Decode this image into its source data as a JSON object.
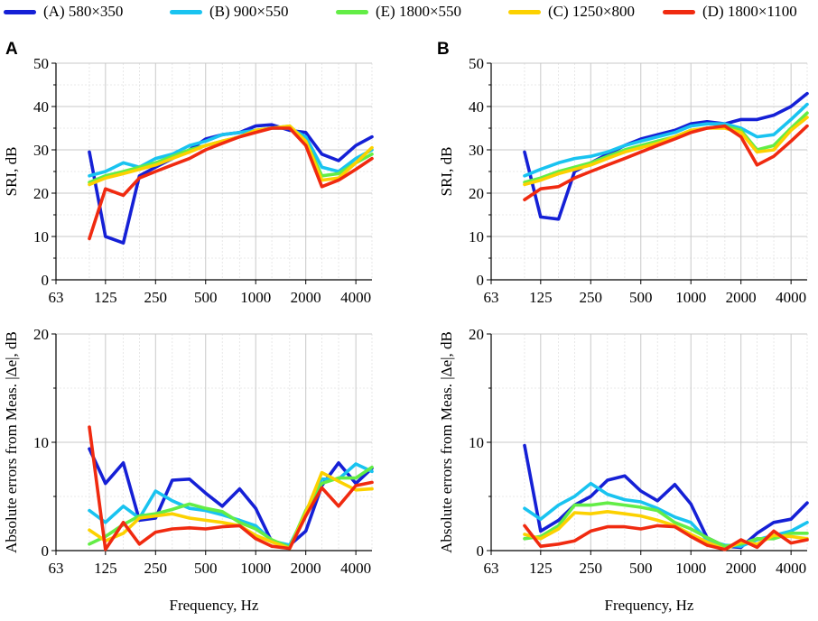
{
  "legend": [
    {
      "label": "(A) 580×350",
      "color": "#1520d6"
    },
    {
      "label": "(B) 900×550",
      "color": "#19c3f0"
    },
    {
      "label": "(E) 1800×550",
      "color": "#63ed46"
    },
    {
      "label": "(C) 1250×800",
      "color": "#fcd100"
    },
    {
      "label": "(D) 1800×1100",
      "color": "#f02a10"
    }
  ],
  "panel_labels": [
    "A",
    "B"
  ],
  "chart_data": [
    {
      "id": "A-top",
      "type": "line",
      "panel": "A",
      "ylabel": "SRI, dB",
      "xlabel": "",
      "ylim": [
        0,
        50
      ],
      "yticks": [
        0,
        10,
        20,
        30,
        40,
        50
      ],
      "xscale": "log",
      "xlim": [
        63,
        5000
      ],
      "xticks": [
        63,
        125,
        250,
        500,
        1000,
        2000,
        4000
      ],
      "grid": true,
      "x": [
        100,
        125,
        160,
        200,
        250,
        315,
        400,
        500,
        630,
        800,
        1000,
        1250,
        1600,
        2000,
        2500,
        3150,
        4000,
        5000
      ],
      "series": [
        {
          "name": "(A) 580×350",
          "values": [
            29.5,
            10,
            8.5,
            24,
            26,
            28,
            30,
            32.5,
            33.5,
            34,
            35.5,
            35.8,
            34.5,
            34,
            29,
            27.5,
            31,
            33
          ]
        },
        {
          "name": "(B) 900×550",
          "values": [
            24,
            25,
            27,
            26,
            28,
            29,
            31,
            32,
            33.5,
            34,
            34.5,
            35,
            35,
            33,
            26,
            25,
            28,
            30
          ]
        },
        {
          "name": "(E) 1800×550",
          "values": [
            22.5,
            24,
            25,
            26,
            27,
            28.5,
            30,
            31,
            32,
            33,
            34.5,
            35,
            35.5,
            32,
            24,
            24.5,
            27,
            29
          ]
        },
        {
          "name": "(C) 1250×800",
          "values": [
            22,
            23.5,
            24.5,
            25.5,
            26.5,
            28,
            29.5,
            31,
            32,
            33,
            34.5,
            35,
            35.5,
            32,
            23,
            23.5,
            27,
            30.5
          ]
        },
        {
          "name": "(D) 1800×1100",
          "values": [
            9.5,
            21,
            19.5,
            23.5,
            25,
            26.5,
            28,
            30,
            31.5,
            33,
            34,
            35,
            35,
            31,
            21.5,
            23,
            25.5,
            28
          ]
        }
      ]
    },
    {
      "id": "A-bottom",
      "type": "line",
      "panel": "A",
      "ylabel": "Absolute errors from Meas. |Δe|, dB",
      "xlabel": "Frequency, Hz",
      "ylim": [
        0,
        20
      ],
      "yticks": [
        0,
        10,
        20
      ],
      "xscale": "log",
      "xlim": [
        63,
        5000
      ],
      "xticks": [
        63,
        125,
        250,
        500,
        1000,
        2000,
        4000
      ],
      "grid": true,
      "x": [
        100,
        125,
        160,
        200,
        250,
        315,
        400,
        500,
        630,
        800,
        1000,
        1250,
        1600,
        2000,
        2500,
        3150,
        4000,
        5000
      ],
      "series": [
        {
          "name": "(A) 580×350",
          "values": [
            9.4,
            6.2,
            8.1,
            2.8,
            3.0,
            6.5,
            6.6,
            5.3,
            4.1,
            5.7,
            3.9,
            0.8,
            0.5,
            1.8,
            6.0,
            8.1,
            6.2,
            7.6
          ]
        },
        {
          "name": "(B) 900×550",
          "values": [
            3.7,
            2.6,
            4.1,
            3.0,
            5.5,
            4.6,
            3.9,
            3.7,
            3.3,
            2.8,
            2.3,
            0.9,
            0.5,
            3.4,
            6.6,
            6.6,
            8.0,
            7.3
          ]
        },
        {
          "name": "(E) 1800×550",
          "values": [
            0.6,
            1.3,
            2.4,
            3.2,
            3.4,
            3.8,
            4.3,
            3.9,
            3.6,
            2.6,
            2.0,
            1.0,
            0.3,
            3.7,
            6.2,
            6.7,
            6.7,
            7.7
          ]
        },
        {
          "name": "(C) 1250×800",
          "values": [
            1.9,
            0.9,
            1.6,
            3.0,
            3.2,
            3.4,
            3.0,
            2.8,
            2.6,
            2.3,
            1.4,
            0.8,
            0.2,
            3.5,
            7.2,
            6.4,
            5.6,
            5.7
          ]
        },
        {
          "name": "(D) 1800×1100",
          "values": [
            11.4,
            0.1,
            2.6,
            0.6,
            1.7,
            2.0,
            2.1,
            2.0,
            2.2,
            2.3,
            1.1,
            0.4,
            0.2,
            3.2,
            5.8,
            4.1,
            6.0,
            6.3
          ]
        }
      ]
    },
    {
      "id": "B-top",
      "type": "line",
      "panel": "B",
      "ylabel": "SRI, dB",
      "xlabel": "",
      "ylim": [
        0,
        50
      ],
      "yticks": [
        0,
        10,
        20,
        30,
        40,
        50
      ],
      "xscale": "log",
      "xlim": [
        63,
        5000
      ],
      "xticks": [
        63,
        125,
        250,
        500,
        1000,
        2000,
        4000
      ],
      "grid": true,
      "x": [
        100,
        125,
        160,
        200,
        250,
        315,
        400,
        500,
        630,
        800,
        1000,
        1250,
        1600,
        2000,
        2500,
        3150,
        4000,
        5000
      ],
      "series": [
        {
          "name": "(A) 580×350",
          "values": [
            29.5,
            14.5,
            14,
            25,
            27,
            29,
            31,
            32.5,
            33.5,
            34.5,
            36,
            36.5,
            36,
            37,
            37,
            38,
            40,
            43
          ]
        },
        {
          "name": "(B) 900×550",
          "values": [
            24,
            25.5,
            27,
            28,
            28.5,
            29.5,
            31,
            32,
            33,
            34,
            35.5,
            36,
            36,
            35,
            33,
            33.5,
            37,
            40.5
          ]
        },
        {
          "name": "(E) 1800×550",
          "values": [
            22.5,
            23.5,
            25,
            26,
            27,
            28.5,
            30,
            31,
            32,
            33,
            34.5,
            35,
            35.5,
            34.5,
            30,
            31,
            35,
            38.5
          ]
        },
        {
          "name": "(C) 1250×800",
          "values": [
            22,
            23,
            24.5,
            25.5,
            26.5,
            28,
            29.5,
            30.5,
            31.5,
            33,
            34.5,
            35,
            35,
            34,
            29.5,
            30,
            34.5,
            37.5
          ]
        },
        {
          "name": "(D) 1800×1100",
          "values": [
            18.5,
            21,
            21.5,
            23.5,
            25,
            26.5,
            28,
            29.5,
            31,
            32.5,
            34,
            35,
            35.5,
            33,
            26.5,
            28.5,
            32,
            35.5
          ]
        }
      ]
    },
    {
      "id": "B-bottom",
      "type": "line",
      "panel": "B",
      "ylabel": "Absolute errors from Meas. |Δe|, dB",
      "xlabel": "Frequency, Hz",
      "ylim": [
        0,
        20
      ],
      "yticks": [
        0,
        10,
        20
      ],
      "xscale": "log",
      "xlim": [
        63,
        5000
      ],
      "xticks": [
        63,
        125,
        250,
        500,
        1000,
        2000,
        4000
      ],
      "grid": true,
      "x": [
        100,
        125,
        160,
        200,
        250,
        315,
        400,
        500,
        630,
        800,
        1000,
        1250,
        1600,
        2000,
        2500,
        3150,
        4000,
        5000
      ],
      "series": [
        {
          "name": "(A) 580×350",
          "values": [
            9.7,
            1.8,
            2.8,
            4.2,
            5.0,
            6.5,
            6.9,
            5.5,
            4.6,
            6.1,
            4.3,
            1.2,
            0.4,
            0.3,
            1.6,
            2.6,
            2.9,
            4.4
          ]
        },
        {
          "name": "(B) 900×550",
          "values": [
            3.9,
            2.9,
            4.2,
            5.0,
            6.2,
            5.2,
            4.7,
            4.5,
            3.9,
            3.1,
            2.6,
            1.0,
            0.5,
            0.4,
            1.0,
            1.4,
            1.8,
            2.6
          ]
        },
        {
          "name": "(E) 1800×550",
          "values": [
            1.1,
            1.3,
            2.3,
            4.2,
            4.2,
            4.4,
            4.2,
            4.0,
            3.7,
            2.6,
            2.0,
            1.2,
            0.4,
            0.6,
            1.1,
            1.1,
            1.6,
            1.6
          ]
        },
        {
          "name": "(C) 1250×800",
          "values": [
            1.5,
            1.1,
            2.0,
            3.5,
            3.4,
            3.6,
            3.4,
            3.2,
            2.8,
            2.3,
            1.5,
            0.8,
            0.1,
            0.8,
            0.6,
            1.4,
            1.3,
            1.1
          ]
        },
        {
          "name": "(D) 1800×1100",
          "values": [
            2.3,
            0.4,
            0.6,
            0.9,
            1.8,
            2.2,
            2.2,
            2.0,
            2.3,
            2.2,
            1.3,
            0.5,
            0.1,
            1.0,
            0.3,
            1.8,
            0.7,
            1.0
          ]
        }
      ]
    }
  ]
}
